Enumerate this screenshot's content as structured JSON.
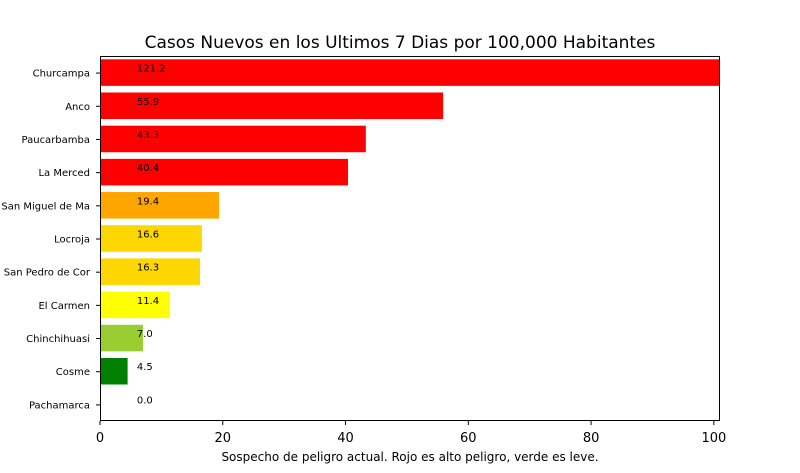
{
  "chart_data": {
    "type": "bar",
    "orientation": "horizontal",
    "title": "Casos Nuevos en los Ultimos 7 Dias por 100,000 Habitantes",
    "xlabel": "Sospecho de peligro actual. Rojo es alto peligro, verde es leve.",
    "ylabel": "",
    "xlim": [
      0,
      101
    ],
    "xticks": [
      0,
      20,
      40,
      60,
      80,
      100
    ],
    "grid": false,
    "categories": [
      "Churcampa",
      "Anco",
      "Paucarbamba",
      "La Merced",
      "San Miguel de Ma",
      "Locroja",
      "San Pedro de Cor",
      "El Carmen",
      "Chinchihuasi",
      "Cosme",
      "Pachamarca"
    ],
    "values": [
      121.2,
      55.9,
      43.3,
      40.4,
      19.4,
      16.6,
      16.3,
      11.4,
      7.0,
      4.5,
      0.0
    ],
    "value_labels": [
      "121.2",
      "55.9",
      "43.3",
      "40.4",
      "19.4",
      "16.6",
      "16.3",
      "11.4",
      "7.0",
      "4.5",
      "0.0"
    ],
    "colors": [
      "#ff0000",
      "#ff0000",
      "#ff0000",
      "#ff0000",
      "#ffa500",
      "#ffd700",
      "#ffd700",
      "#ffff00",
      "#9acd32",
      "#008000",
      "#008000"
    ]
  }
}
